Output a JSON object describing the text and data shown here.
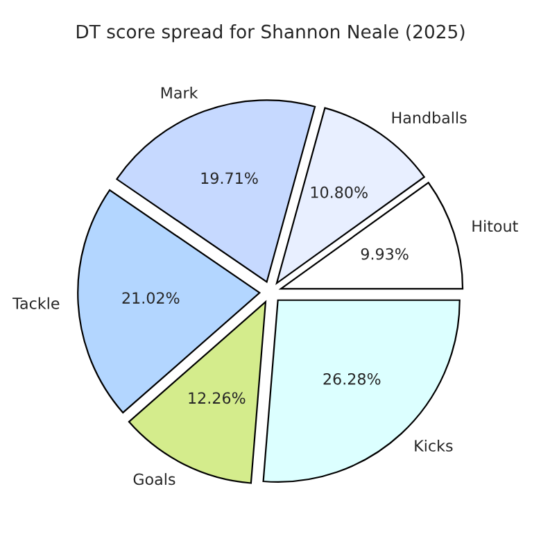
{
  "chart_data": {
    "type": "pie",
    "title": "DT score spread for Shannon Neale (2025)",
    "categories": [
      "Hitout",
      "Handballs",
      "Mark",
      "Tackle",
      "Goals",
      "Kicks"
    ],
    "values": [
      9.93,
      10.8,
      19.71,
      21.02,
      12.26,
      26.28
    ],
    "value_labels": [
      "9.93%",
      "10.80%",
      "19.71%",
      "21.02%",
      "12.26%",
      "26.28%"
    ],
    "colors": [
      "#ffffff",
      "#e8efff",
      "#c6d9ff",
      "#b3d6ff",
      "#d4ec8c",
      "#dcffff"
    ]
  }
}
